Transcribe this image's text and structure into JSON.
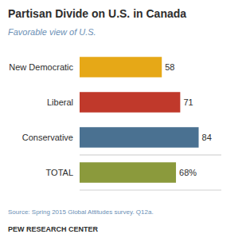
{
  "chart_data": {
    "type": "bar",
    "orientation": "horizontal",
    "title": "Partisan Divide on U.S. in Canada",
    "subtitle": "Favorable view of U.S.",
    "categories": [
      "New Democratic",
      "Liberal",
      "Conservative",
      "TOTAL"
    ],
    "values": [
      58,
      71,
      84,
      68
    ],
    "value_labels": [
      "58",
      "71",
      "84",
      "68%"
    ],
    "colors": [
      "#e6a817",
      "#c0392b",
      "#4a7191",
      "#8b9a3c"
    ],
    "xlim": [
      0,
      100
    ],
    "data_labels": true,
    "tick_labels": "y",
    "grid": false,
    "annotations": [
      "Source: Spring 2015 Global Attitudes survey. Q12a.",
      "PEW RESEARCH CENTER"
    ]
  }
}
